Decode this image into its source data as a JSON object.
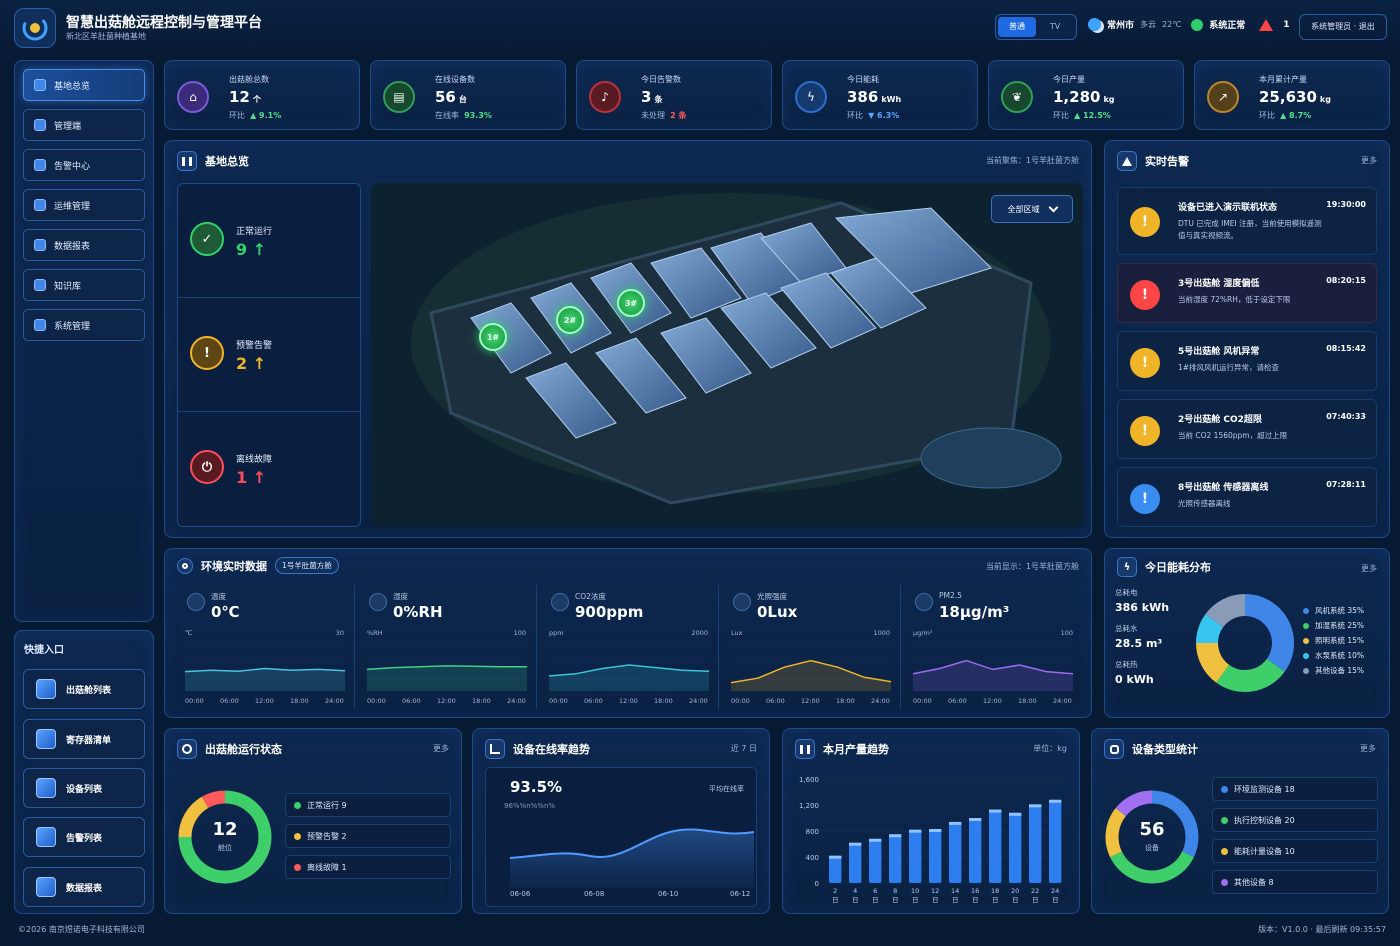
{
  "header": {
    "title": "智慧出菇舱远程控制与管理平台",
    "subtitle": "新北区羊肚菌种植基地",
    "modes": [
      "普通",
      "TV"
    ],
    "city": "常州市",
    "weather": "多云",
    "temp": "22℃",
    "system_status": "系统正常",
    "alert_count": "1",
    "user_label": "系统管理员 · 退出",
    "colors": {
      "accent": "#1f6ae0",
      "ok": "#2fcf6a",
      "danger": "#ff4545"
    }
  },
  "nav": {
    "items": [
      {
        "label": "基地总览",
        "icon": "overview-icon"
      },
      {
        "label": "管理端",
        "icon": "settings-icon"
      },
      {
        "label": "告警中心",
        "icon": "alert-icon"
      },
      {
        "label": "运维管理",
        "icon": "maintenance-icon"
      },
      {
        "label": "数据报表",
        "icon": "report-icon"
      },
      {
        "label": "知识库",
        "icon": "book-icon"
      },
      {
        "label": "系统管理",
        "icon": "gear-icon"
      }
    ]
  },
  "quick": {
    "title": "快捷入口",
    "items": [
      {
        "label": "出菇舱列表"
      },
      {
        "label": "寄存器清单"
      },
      {
        "label": "设备列表"
      },
      {
        "label": "告警列表"
      },
      {
        "label": "数据报表"
      }
    ]
  },
  "stats": [
    {
      "label": "出菇舱总数",
      "value": "12",
      "unit": "个",
      "sub_label": "环比",
      "sub_value": "▲ 9.1%",
      "color": "#7a5bd6"
    },
    {
      "label": "在线设备数",
      "value": "56",
      "unit": "台",
      "sub_label": "在线率",
      "sub_value": "93.3%",
      "color": "#2f9e5a"
    },
    {
      "label": "今日告警数",
      "value": "3",
      "unit": "条",
      "sub_label": "未处理",
      "sub_value": "2 条",
      "color": "#b8323c"
    },
    {
      "label": "今日能耗",
      "value": "386",
      "unit": "kWh",
      "sub_label": "环比",
      "sub_value": "▼ 6.3%",
      "color": "#2a6fcf"
    },
    {
      "label": "今日产量",
      "value": "1,280",
      "unit": "kg",
      "sub_label": "环比",
      "sub_value": "▲ 12.5%",
      "color": "#2f9e5a"
    },
    {
      "label": "本月累计产量",
      "value": "25,630",
      "unit": "kg",
      "sub_label": "环比",
      "sub_value": "▲ 8.7%",
      "color": "#b8862f"
    }
  ],
  "overview": {
    "title": "基地总览",
    "focus": "当前聚焦：1号羊肚菌方舱",
    "zone_select": "全部区域",
    "status": [
      {
        "label": "正常运行",
        "count": "9",
        "color": "#2fcf6a",
        "symbol": "✓"
      },
      {
        "label": "预警告警",
        "count": "2",
        "color": "#f0b429",
        "symbol": "!"
      },
      {
        "label": "离线故障",
        "count": "1",
        "color": "#ff4d5a",
        "symbol": "⏻"
      }
    ],
    "markers": [
      "1#",
      "2#",
      "3#"
    ]
  },
  "alarms": {
    "title": "实时告警",
    "more": "更多",
    "items": [
      {
        "title": "设备已进入演示联机状态",
        "time": "19:30:00",
        "desc": "DTU 已完成 IMEI 注册，当前使用模拟遥测值与真实视频流。",
        "level": "warn"
      },
      {
        "title": "3号出菇舱 湿度偏低",
        "time": "08:20:15",
        "desc": "当前湿度 72%RH，低于设定下限",
        "level": "danger"
      },
      {
        "title": "5号出菇舱 风机异常",
        "time": "08:15:42",
        "desc": "1#排风风机运行异常，请检查",
        "level": "warn"
      },
      {
        "title": "2号出菇舱 CO2超限",
        "time": "07:40:33",
        "desc": "当前 CO2 1560ppm，超过上限",
        "level": "warn"
      },
      {
        "title": "8号出菇舱 传感器离线",
        "time": "07:28:11",
        "desc": "光照传感器离线",
        "level": "info"
      }
    ]
  },
  "env": {
    "title": "环境实时数据",
    "tag": "1号羊肚菌方舱",
    "current": "当前显示：1号羊肚菌方舱",
    "cells": [
      {
        "name": "温度",
        "value": "0℃",
        "unit": "℃",
        "max": "30",
        "color": "#4cc3d9",
        "icon": "thermometer-icon",
        "series": [
          0.35,
          0.38,
          0.36,
          0.42,
          0.38,
          0.4,
          0.37
        ]
      },
      {
        "name": "湿度",
        "value": "0%RH",
        "unit": "%RH",
        "max": "100",
        "color": "#3fcf8a",
        "icon": "droplet-icon",
        "series": [
          0.4,
          0.44,
          0.46,
          0.48,
          0.47,
          0.46,
          0.46
        ]
      },
      {
        "name": "CO2浓度",
        "value": "900ppm",
        "unit": "ppm",
        "max": "2000",
        "color": "#36c6d8",
        "icon": "co2-icon",
        "series": [
          0.25,
          0.3,
          0.42,
          0.5,
          0.44,
          0.38,
          0.36
        ]
      },
      {
        "name": "光照强度",
        "value": "0Lux",
        "unit": "Lux",
        "max": "1000",
        "color": "#f0b429",
        "icon": "sun-icon",
        "series": [
          0.1,
          0.2,
          0.45,
          0.6,
          0.45,
          0.22,
          0.12
        ]
      },
      {
        "name": "PM2.5",
        "value": "18μg/m³",
        "unit": "μg/m³",
        "max": "100",
        "color": "#9b6cf0",
        "icon": "pm-icon",
        "series": [
          0.3,
          0.42,
          0.6,
          0.4,
          0.5,
          0.35,
          0.3
        ]
      }
    ],
    "times": [
      "00:00",
      "06:00",
      "12:00",
      "18:00",
      "24:00"
    ]
  },
  "energy": {
    "title": "今日能耗分布",
    "more": "更多",
    "totals": [
      {
        "label": "总耗电",
        "value": "386 kWh"
      },
      {
        "label": "总耗水",
        "value": "28.5 m³"
      },
      {
        "label": "总耗热",
        "value": "0 kWh"
      }
    ],
    "legend": [
      {
        "label": "风机系统 35%",
        "value": 35,
        "color": "#3f86e8"
      },
      {
        "label": "加湿系统 25%",
        "value": 25,
        "color": "#3fcf6a"
      },
      {
        "label": "照明系统 15%",
        "value": 15,
        "color": "#f0c040"
      },
      {
        "label": "水泵系统 10%",
        "value": 10,
        "color": "#36c6f0"
      },
      {
        "label": "其他设备 15%",
        "value": 15,
        "color": "#8a9bb8"
      }
    ]
  },
  "run_status": {
    "title": "出菇舱运行状态",
    "more": "更多",
    "total": "12",
    "unit": "舱位",
    "items": [
      {
        "label": "正常运行 9",
        "value": 9,
        "color": "#3fcf6a"
      },
      {
        "label": "预警告警 2",
        "value": 2,
        "color": "#f0c040"
      },
      {
        "label": "离线故障 1",
        "value": 1,
        "color": "#ff5a5a"
      }
    ]
  },
  "online_trend": {
    "title": "设备在线率趋势",
    "range": "近 7 日",
    "value": "93.5%",
    "caption": "平均在线率",
    "small": "96%%n%%n%",
    "x_labels": [
      "06-06",
      "06-08",
      "06-10",
      "06-12"
    ]
  },
  "chart_data": {
    "type": "bar",
    "title": "本月产量趋势",
    "unit_label": "单位：kg",
    "categories": [
      "2日",
      "4日",
      "6日",
      "8日",
      "10日",
      "12日",
      "14日",
      "16日",
      "18日",
      "20日",
      "22日",
      "24日"
    ],
    "values": [
      420,
      620,
      680,
      750,
      820,
      830,
      940,
      1000,
      1130,
      1080,
      1210,
      1280
    ],
    "ylim": [
      0,
      1600
    ],
    "yticks": [
      "1,600",
      "1,200",
      "800",
      "400",
      "0"
    ],
    "grid": true
  },
  "device_types": {
    "title": "设备类型统计",
    "more": "更多",
    "total": "56",
    "unit": "设备",
    "items": [
      {
        "label": "环境监测设备 18",
        "value": 18,
        "color": "#3f86e8"
      },
      {
        "label": "执行控制设备 20",
        "value": 20,
        "color": "#3fcf6a"
      },
      {
        "label": "能耗计量设备 10",
        "value": 10,
        "color": "#f0c040"
      },
      {
        "label": "其他设备 8",
        "value": 8,
        "color": "#a070f0"
      }
    ]
  },
  "footer": {
    "copyright": "©2026 南京煜诺电子科技有限公司",
    "version": "版本：V1.0.0 · 最后刷新 09:35:57"
  }
}
